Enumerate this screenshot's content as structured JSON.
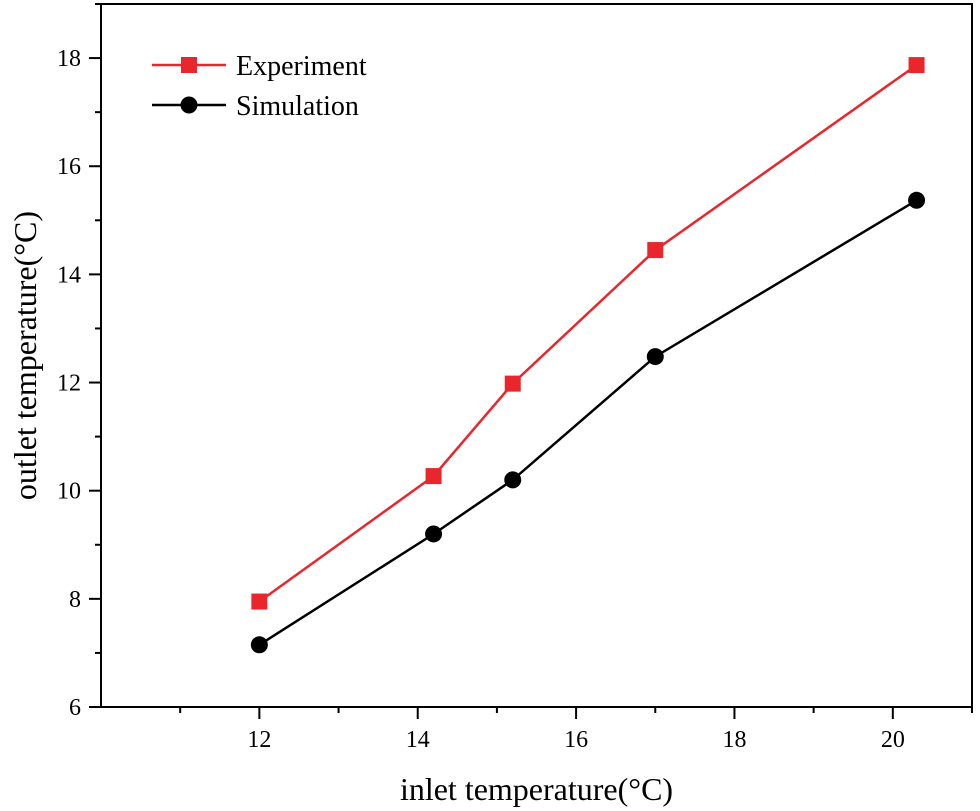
{
  "chart_data": {
    "type": "line",
    "title": "",
    "xlabel": "inlet temperature(°C)",
    "ylabel": "outlet temperature(°C)",
    "xlim": [
      10,
      21
    ],
    "ylim": [
      6,
      19
    ],
    "xticks": [
      12,
      14,
      16,
      18,
      20
    ],
    "yticks": [
      6,
      8,
      10,
      12,
      14,
      16,
      18
    ],
    "xtick_labels": [
      "12",
      "14",
      "16",
      "18",
      "20"
    ],
    "ytick_labels": [
      "6",
      "8",
      "10",
      "12",
      "14",
      "16",
      "18"
    ],
    "xminor": [
      11,
      13,
      15,
      17,
      19,
      21
    ],
    "yminor": [
      7,
      9,
      11,
      13,
      15,
      17,
      19
    ],
    "grid": false,
    "legend_position": "top-left",
    "series": [
      {
        "name": "Experiment",
        "color": "#e8262b",
        "marker": "square",
        "x": [
          12.0,
          14.2,
          15.2,
          17.0,
          20.3
        ],
        "y": [
          7.95,
          10.27,
          11.98,
          14.45,
          17.87
        ]
      },
      {
        "name": "Simulation",
        "color": "#000000",
        "marker": "circle",
        "x": [
          12.0,
          14.2,
          15.2,
          17.0,
          20.3
        ],
        "y": [
          7.15,
          9.2,
          10.2,
          12.48,
          15.37
        ]
      }
    ]
  }
}
